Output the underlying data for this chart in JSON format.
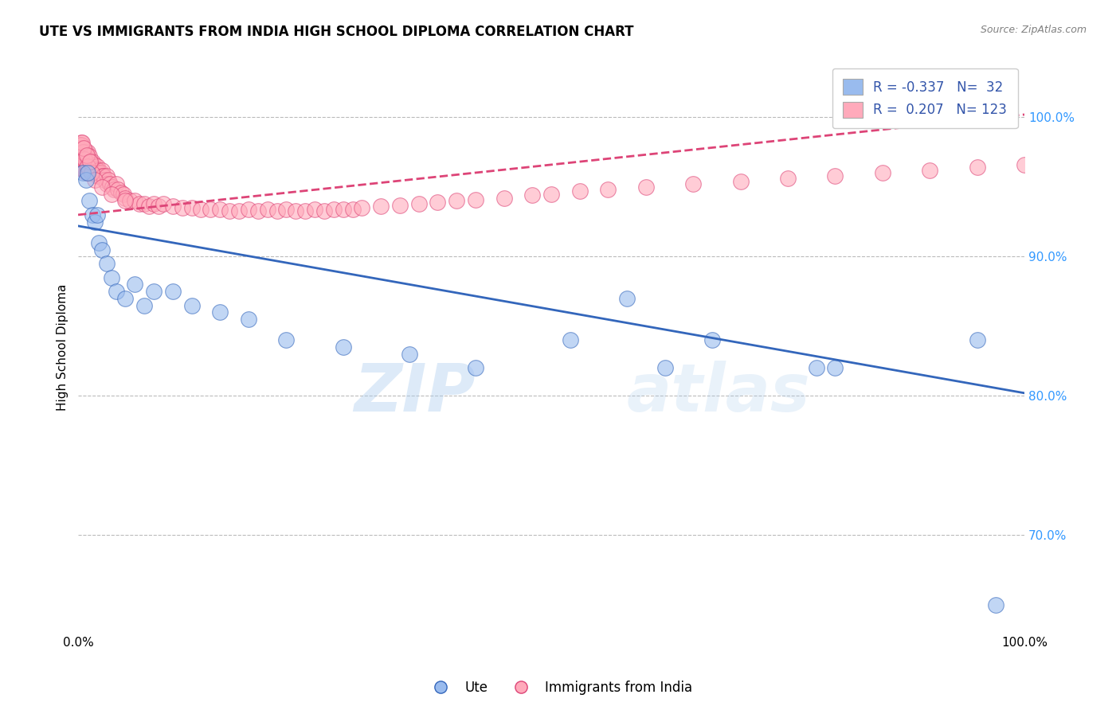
{
  "title": "UTE VS IMMIGRANTS FROM INDIA HIGH SCHOOL DIPLOMA CORRELATION CHART",
  "source_text": "Source: ZipAtlas.com",
  "ylabel": "High School Diploma",
  "watermark": "ZIPatlas",
  "legend_blue_label": "Ute",
  "legend_pink_label": "Immigrants from India",
  "R_blue": -0.337,
  "N_blue": 32,
  "R_pink": 0.207,
  "N_pink": 123,
  "blue_color": "#99BBEE",
  "pink_color": "#FFAABB",
  "blue_line_color": "#3366BB",
  "pink_line_color": "#DD4477",
  "xlim": [
    0.0,
    1.0
  ],
  "ylim": [
    0.63,
    1.04
  ],
  "yticks": [
    0.7,
    0.8,
    0.9,
    1.0
  ],
  "ytick_labels": [
    "70.0%",
    "80.0%",
    "90.0%",
    "100.0%"
  ],
  "xticks": [
    0.0,
    1.0
  ],
  "xtick_labels": [
    "0.0%",
    "100.0%"
  ],
  "blue_trend_x": [
    0.0,
    1.0
  ],
  "blue_trend_y": [
    0.922,
    0.802
  ],
  "pink_trend_x": [
    0.0,
    1.0
  ],
  "pink_trend_y": [
    0.93,
    1.002
  ],
  "blue_x": [
    0.005,
    0.008,
    0.01,
    0.012,
    0.015,
    0.018,
    0.02,
    0.022,
    0.025,
    0.03,
    0.035,
    0.04,
    0.05,
    0.06,
    0.07,
    0.08,
    0.1,
    0.12,
    0.15,
    0.18,
    0.22,
    0.28,
    0.35,
    0.42,
    0.52,
    0.58,
    0.62,
    0.67,
    0.78,
    0.8,
    0.95,
    0.97
  ],
  "blue_y": [
    0.96,
    0.955,
    0.96,
    0.94,
    0.93,
    0.925,
    0.93,
    0.91,
    0.905,
    0.895,
    0.885,
    0.875,
    0.87,
    0.88,
    0.865,
    0.875,
    0.875,
    0.865,
    0.86,
    0.855,
    0.84,
    0.835,
    0.83,
    0.82,
    0.84,
    0.87,
    0.82,
    0.84,
    0.82,
    0.82,
    0.84,
    0.65
  ],
  "pink_x": [
    0.001,
    0.001,
    0.002,
    0.002,
    0.002,
    0.003,
    0.003,
    0.003,
    0.004,
    0.004,
    0.005,
    0.005,
    0.005,
    0.006,
    0.006,
    0.006,
    0.007,
    0.007,
    0.007,
    0.008,
    0.008,
    0.008,
    0.009,
    0.009,
    0.01,
    0.01,
    0.01,
    0.011,
    0.011,
    0.012,
    0.012,
    0.013,
    0.013,
    0.014,
    0.015,
    0.015,
    0.016,
    0.017,
    0.018,
    0.018,
    0.019,
    0.02,
    0.02,
    0.021,
    0.022,
    0.023,
    0.024,
    0.025,
    0.026,
    0.027,
    0.028,
    0.03,
    0.03,
    0.032,
    0.034,
    0.036,
    0.038,
    0.04,
    0.042,
    0.045,
    0.048,
    0.05,
    0.055,
    0.06,
    0.065,
    0.07,
    0.075,
    0.08,
    0.085,
    0.09,
    0.1,
    0.11,
    0.12,
    0.13,
    0.14,
    0.15,
    0.16,
    0.17,
    0.18,
    0.19,
    0.2,
    0.21,
    0.22,
    0.23,
    0.24,
    0.25,
    0.26,
    0.27,
    0.28,
    0.29,
    0.3,
    0.32,
    0.34,
    0.36,
    0.38,
    0.4,
    0.42,
    0.45,
    0.48,
    0.5,
    0.53,
    0.56,
    0.6,
    0.65,
    0.7,
    0.75,
    0.8,
    0.85,
    0.9,
    0.95,
    1.0,
    0.003,
    0.005,
    0.007,
    0.01,
    0.014,
    0.018,
    0.025,
    0.035,
    0.05,
    0.004,
    0.006,
    0.009,
    0.013
  ],
  "pink_y": [
    0.98,
    0.975,
    0.978,
    0.972,
    0.968,
    0.982,
    0.976,
    0.97,
    0.975,
    0.968,
    0.978,
    0.972,
    0.965,
    0.975,
    0.97,
    0.962,
    0.975,
    0.968,
    0.962,
    0.975,
    0.968,
    0.96,
    0.972,
    0.965,
    0.975,
    0.968,
    0.96,
    0.97,
    0.963,
    0.972,
    0.965,
    0.968,
    0.962,
    0.965,
    0.968,
    0.962,
    0.965,
    0.962,
    0.966,
    0.96,
    0.963,
    0.965,
    0.958,
    0.962,
    0.96,
    0.958,
    0.96,
    0.962,
    0.958,
    0.958,
    0.955,
    0.958,
    0.952,
    0.955,
    0.952,
    0.95,
    0.948,
    0.952,
    0.948,
    0.946,
    0.945,
    0.942,
    0.94,
    0.94,
    0.938,
    0.938,
    0.936,
    0.938,
    0.936,
    0.938,
    0.936,
    0.935,
    0.935,
    0.934,
    0.934,
    0.934,
    0.933,
    0.933,
    0.934,
    0.933,
    0.934,
    0.933,
    0.934,
    0.933,
    0.933,
    0.934,
    0.933,
    0.934,
    0.934,
    0.934,
    0.935,
    0.936,
    0.937,
    0.938,
    0.939,
    0.94,
    0.941,
    0.942,
    0.944,
    0.945,
    0.947,
    0.948,
    0.95,
    0.952,
    0.954,
    0.956,
    0.958,
    0.96,
    0.962,
    0.964,
    0.966,
    0.98,
    0.975,
    0.97,
    0.965,
    0.96,
    0.955,
    0.95,
    0.945,
    0.94,
    0.982,
    0.978,
    0.973,
    0.968
  ]
}
